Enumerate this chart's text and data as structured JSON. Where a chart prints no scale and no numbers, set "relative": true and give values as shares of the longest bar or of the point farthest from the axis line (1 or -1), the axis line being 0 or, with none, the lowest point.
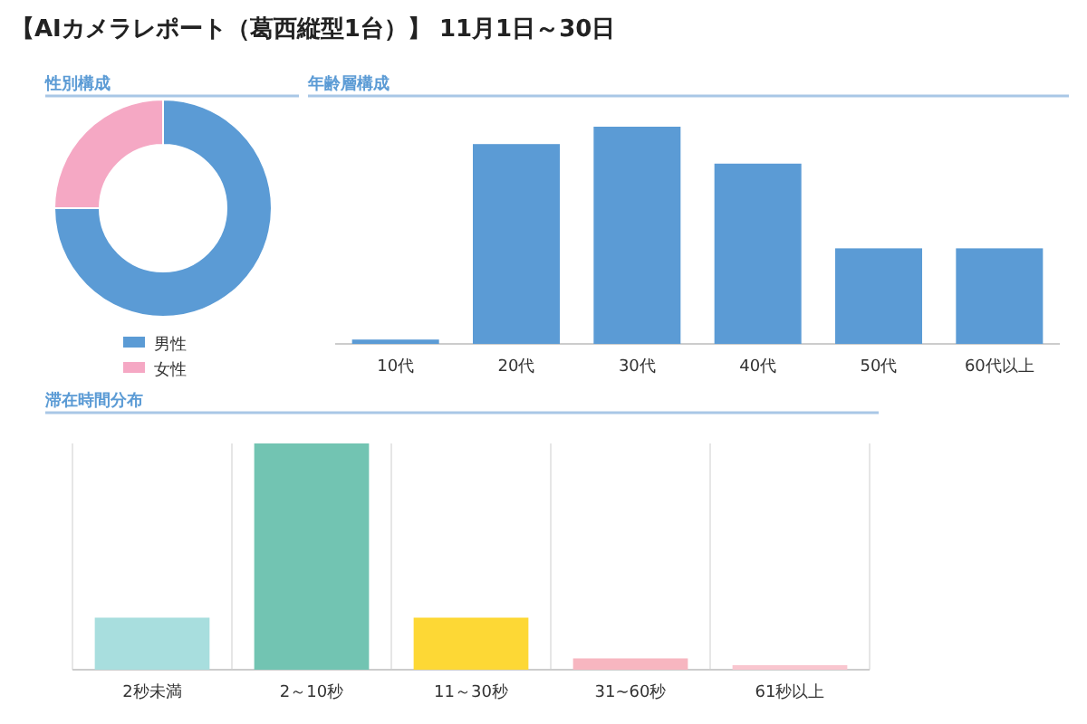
{
  "chart_data": [
    {
      "type": "other",
      "title": "【AIカメラレポート（葛西縦型1台）】 11月1日～30日"
    },
    {
      "type": "donut",
      "title": "性別構成",
      "categories": [
        "男性",
        "女性"
      ],
      "values": [
        75,
        25
      ],
      "colors": [
        "#5b9bd5",
        "#f5a8c4"
      ],
      "legend": "bottom"
    },
    {
      "type": "bar",
      "title": "年齢層構成",
      "relative": true,
      "categories": [
        "10代",
        "20代",
        "30代",
        "40代",
        "50代",
        "60代以上"
      ],
      "values": [
        0.02,
        0.92,
        1,
        0.83,
        0.44,
        0.44
      ],
      "color": "#5b9bd5"
    },
    {
      "type": "bar",
      "title": "滞在時間分布",
      "relative": true,
      "grid": "x",
      "categories": [
        "2秒未満",
        "2～10秒",
        "11～30秒",
        "31~60秒",
        "61秒以上"
      ],
      "values": [
        0.23,
        1,
        0.23,
        0.05,
        0.02
      ],
      "colors": [
        "#a8dede",
        "#72c4b2",
        "#fdd835",
        "#f7b6c0",
        "#f9c6cf"
      ]
    }
  ]
}
